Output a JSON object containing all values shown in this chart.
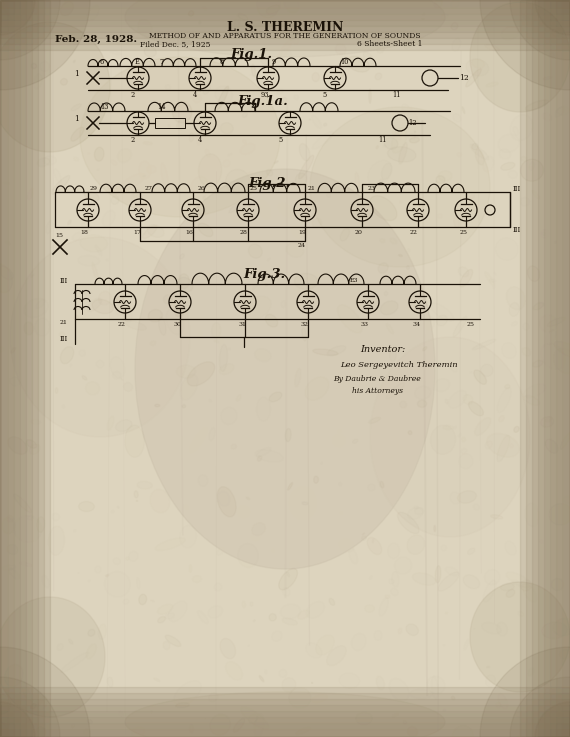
{
  "ink": "#1a1208",
  "paper_light": "#e8dfc8",
  "paper_mid": "#d5c9b0",
  "paper_dark": "#b8aa90",
  "paper_edge": "#8a7a60",
  "date": "Feb. 28, 1928.",
  "inventor_name": "L. S. THEREMIN",
  "title1": "METHOD OF AND APPARATUS FOR THE GENERATION OF SOUNDS",
  "title2": "Filed Dec. 5, 1925",
  "title3": "6 Sheets-Sheet 1",
  "fig1_label": "Fig.1.",
  "fig1a_label": "Fig.1a.",
  "fig2_label": "Fig.2.",
  "fig3_label": "Fig.3.",
  "inv_label": "Inventor:",
  "inv_sig": "Leo Sergeyevitch Theremin",
  "att_sig": "By Daubrie & Daubree",
  "att_text": "his Attorneys"
}
